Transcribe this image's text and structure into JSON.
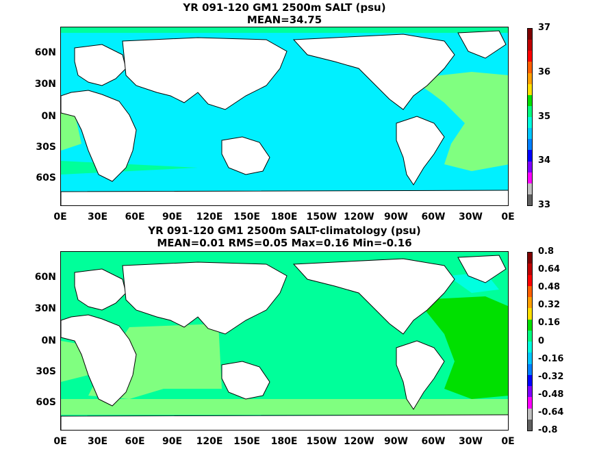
{
  "panels": [
    {
      "title_line1": "YR 091-120 GM1 2500m SALT (psu)",
      "title_line2": "MEAN=34.75",
      "fill_main": "#00f0ff",
      "colorbar_labels": [
        "37",
        "36",
        "35",
        "34",
        "33"
      ],
      "colorbar_colors": [
        "#800000",
        "#c00000",
        "#ff0000",
        "#ff6000",
        "#ffa000",
        "#ffe000",
        "#00e000",
        "#00ff80",
        "#00ffe0",
        "#00c8ff",
        "#0080ff",
        "#0000ff",
        "#8000ff",
        "#ff00ff",
        "#c0c0c0",
        "#606060"
      ]
    },
    {
      "title_line1": "YR 091-120 GM1 2500m SALT-climatology (psu)",
      "title_line2": "MEAN=0.01   RMS=0.05   Max=0.16   Min=-0.16",
      "fill_main": "#00ff9a",
      "colorbar_labels": [
        "0.8",
        "0.64",
        "0.48",
        "0.32",
        "0.16",
        "0",
        "-0.16",
        "-0.32",
        "-0.48",
        "-0.64",
        "-0.8"
      ],
      "colorbar_colors": [
        "#800000",
        "#c00000",
        "#ff0000",
        "#ff6000",
        "#ffa000",
        "#ffe000",
        "#00e000",
        "#00ff80",
        "#00ffe0",
        "#00c8ff",
        "#0080ff",
        "#0000ff",
        "#8000ff",
        "#ff00ff",
        "#c0c0c0",
        "#606060"
      ]
    }
  ],
  "lat_labels": [
    "60N",
    "30N",
    "0N",
    "30S",
    "60S"
  ],
  "lon_labels": [
    "0E",
    "30E",
    "60E",
    "90E",
    "120E",
    "150E",
    "180E",
    "150W",
    "120W",
    "90W",
    "60W",
    "30W",
    "0E"
  ]
}
